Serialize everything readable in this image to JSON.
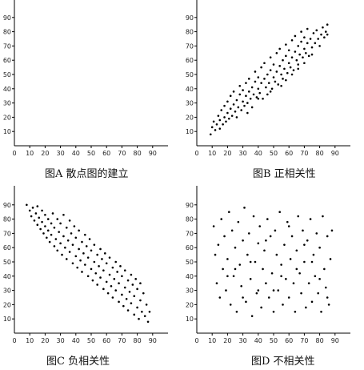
{
  "chart_data": [
    {
      "type": "scatter",
      "caption": "图A 散点图的建立",
      "xticks": [
        "10",
        "20",
        "30",
        "40",
        "50",
        "60",
        "70",
        "80",
        "90"
      ],
      "yticks": [
        "10",
        "20",
        "30",
        "40",
        "50",
        "60",
        "70",
        "80",
        "90"
      ],
      "xlim": [
        0,
        100
      ],
      "ylim": [
        0,
        100
      ],
      "points": []
    },
    {
      "type": "scatter",
      "caption": "图B 正相关性",
      "xticks": [
        "10",
        "20",
        "30",
        "40",
        "50",
        "60",
        "70",
        "80",
        "90"
      ],
      "yticks": [
        "10",
        "20",
        "30",
        "40",
        "50",
        "60",
        "70",
        "80",
        "90"
      ],
      "xlim": [
        0,
        100
      ],
      "ylim": [
        0,
        100
      ],
      "points": [
        [
          9,
          8
        ],
        [
          10,
          13
        ],
        [
          11,
          17
        ],
        [
          12,
          11
        ],
        [
          13,
          15
        ],
        [
          14,
          21
        ],
        [
          15,
          12
        ],
        [
          15,
          18
        ],
        [
          16,
          25
        ],
        [
          17,
          15
        ],
        [
          18,
          20
        ],
        [
          18,
          28
        ],
        [
          19,
          17
        ],
        [
          20,
          23
        ],
        [
          20,
          31
        ],
        [
          21,
          19
        ],
        [
          22,
          26
        ],
        [
          22,
          35
        ],
        [
          23,
          21
        ],
        [
          24,
          29
        ],
        [
          24,
          38
        ],
        [
          25,
          24
        ],
        [
          26,
          32
        ],
        [
          26,
          20
        ],
        [
          27,
          27
        ],
        [
          28,
          36
        ],
        [
          28,
          42
        ],
        [
          29,
          25
        ],
        [
          30,
          31
        ],
        [
          30,
          39
        ],
        [
          31,
          28
        ],
        [
          32,
          35
        ],
        [
          32,
          44
        ],
        [
          33,
          30
        ],
        [
          34,
          38
        ],
        [
          34,
          47
        ],
        [
          35,
          33
        ],
        [
          36,
          41
        ],
        [
          36,
          27
        ],
        [
          37,
          36
        ],
        [
          38,
          45
        ],
        [
          38,
          52
        ],
        [
          39,
          34
        ],
        [
          40,
          40
        ],
        [
          40,
          48
        ],
        [
          41,
          37
        ],
        [
          42,
          44
        ],
        [
          42,
          55
        ],
        [
          43,
          33
        ],
        [
          44,
          47
        ],
        [
          44,
          58
        ],
        [
          45,
          41
        ],
        [
          46,
          50
        ],
        [
          46,
          36
        ],
        [
          47,
          44
        ],
        [
          48,
          53
        ],
        [
          48,
          62
        ],
        [
          49,
          40
        ],
        [
          50,
          48
        ],
        [
          50,
          57
        ],
        [
          51,
          45
        ],
        [
          52,
          52
        ],
        [
          52,
          65
        ],
        [
          53,
          43
        ],
        [
          54,
          56
        ],
        [
          54,
          68
        ],
        [
          55,
          50
        ],
        [
          56,
          60
        ],
        [
          56,
          47
        ],
        [
          57,
          54
        ],
        [
          58,
          63
        ],
        [
          58,
          71
        ],
        [
          59,
          51
        ],
        [
          60,
          58
        ],
        [
          60,
          67
        ],
        [
          61,
          55
        ],
        [
          62,
          62
        ],
        [
          62,
          74
        ],
        [
          63,
          53
        ],
        [
          64,
          66
        ],
        [
          64,
          77
        ],
        [
          65,
          60
        ],
        [
          66,
          70
        ],
        [
          66,
          57
        ],
        [
          67,
          64
        ],
        [
          68,
          73
        ],
        [
          68,
          80
        ],
        [
          69,
          62
        ],
        [
          70,
          68
        ],
        [
          70,
          76
        ],
        [
          71,
          65
        ],
        [
          72,
          72
        ],
        [
          72,
          82
        ],
        [
          73,
          63
        ],
        [
          74,
          75
        ],
        [
          75,
          69
        ],
        [
          76,
          79
        ],
        [
          77,
          72
        ],
        [
          78,
          81
        ],
        [
          79,
          75
        ],
        [
          80,
          70
        ],
        [
          81,
          78
        ],
        [
          82,
          83
        ],
        [
          83,
          76
        ],
        [
          84,
          80
        ],
        [
          85,
          85
        ],
        [
          48,
          38
        ],
        [
          55,
          42
        ],
        [
          62,
          50
        ],
        [
          70,
          58
        ],
        [
          40,
          33
        ],
        [
          33,
          23
        ],
        [
          58,
          46
        ],
        [
          66,
          54
        ],
        [
          75,
          64
        ],
        [
          85,
          78
        ]
      ]
    },
    {
      "type": "scatter",
      "caption": "图C 负相关性",
      "xticks": [
        "10",
        "20",
        "30",
        "40",
        "50",
        "60",
        "70",
        "80",
        "90"
      ],
      "yticks": [
        "10",
        "20",
        "30",
        "40",
        "50",
        "60",
        "70",
        "80",
        "90"
      ],
      "xlim": [
        0,
        100
      ],
      "ylim": [
        0,
        100
      ],
      "points": [
        [
          8,
          90
        ],
        [
          10,
          86
        ],
        [
          11,
          82
        ],
        [
          12,
          88
        ],
        [
          13,
          79
        ],
        [
          14,
          84
        ],
        [
          15,
          76
        ],
        [
          15,
          89
        ],
        [
          16,
          81
        ],
        [
          17,
          73
        ],
        [
          18,
          86
        ],
        [
          18,
          78
        ],
        [
          19,
          70
        ],
        [
          20,
          83
        ],
        [
          20,
          75
        ],
        [
          21,
          67
        ],
        [
          22,
          80
        ],
        [
          22,
          72
        ],
        [
          23,
          64
        ],
        [
          24,
          77
        ],
        [
          24,
          69
        ],
        [
          25,
          84
        ],
        [
          26,
          61
        ],
        [
          26,
          74
        ],
        [
          27,
          66
        ],
        [
          28,
          80
        ],
        [
          28,
          58
        ],
        [
          29,
          71
        ],
        [
          30,
          63
        ],
        [
          30,
          77
        ],
        [
          31,
          55
        ],
        [
          32,
          68
        ],
        [
          32,
          83
        ],
        [
          33,
          60
        ],
        [
          34,
          74
        ],
        [
          34,
          52
        ],
        [
          35,
          65
        ],
        [
          36,
          79
        ],
        [
          36,
          57
        ],
        [
          37,
          70
        ],
        [
          38,
          49
        ],
        [
          38,
          62
        ],
        [
          39,
          75
        ],
        [
          40,
          54
        ],
        [
          40,
          67
        ],
        [
          41,
          46
        ],
        [
          42,
          59
        ],
        [
          42,
          72
        ],
        [
          43,
          51
        ],
        [
          44,
          64
        ],
        [
          44,
          43
        ],
        [
          45,
          56
        ],
        [
          46,
          69
        ],
        [
          46,
          48
        ],
        [
          47,
          61
        ],
        [
          48,
          40
        ],
        [
          48,
          53
        ],
        [
          49,
          66
        ],
        [
          50,
          45
        ],
        [
          50,
          58
        ],
        [
          51,
          37
        ],
        [
          52,
          50
        ],
        [
          52,
          62
        ],
        [
          53,
          42
        ],
        [
          54,
          55
        ],
        [
          54,
          34
        ],
        [
          55,
          47
        ],
        [
          56,
          59
        ],
        [
          56,
          39
        ],
        [
          57,
          52
        ],
        [
          58,
          31
        ],
        [
          58,
          44
        ],
        [
          59,
          56
        ],
        [
          60,
          36
        ],
        [
          60,
          49
        ],
        [
          61,
          28
        ],
        [
          62,
          41
        ],
        [
          62,
          53
        ],
        [
          63,
          33
        ],
        [
          64,
          46
        ],
        [
          64,
          25
        ],
        [
          65,
          38
        ],
        [
          66,
          50
        ],
        [
          66,
          30
        ],
        [
          67,
          43
        ],
        [
          68,
          22
        ],
        [
          68,
          35
        ],
        [
          69,
          47
        ],
        [
          70,
          27
        ],
        [
          70,
          40
        ],
        [
          71,
          19
        ],
        [
          72,
          32
        ],
        [
          72,
          44
        ],
        [
          73,
          24
        ],
        [
          74,
          37
        ],
        [
          74,
          16
        ],
        [
          75,
          29
        ],
        [
          76,
          41
        ],
        [
          76,
          21
        ],
        [
          77,
          34
        ],
        [
          78,
          13
        ],
        [
          78,
          26
        ],
        [
          79,
          38
        ],
        [
          80,
          18
        ],
        [
          80,
          31
        ],
        [
          81,
          10
        ],
        [
          82,
          23
        ],
        [
          82,
          35
        ],
        [
          83,
          15
        ],
        [
          84,
          28
        ],
        [
          85,
          12
        ],
        [
          86,
          20
        ],
        [
          87,
          8
        ],
        [
          88,
          15
        ]
      ]
    },
    {
      "type": "scatter",
      "caption": "图D 不相关性",
      "xticks": [
        "10",
        "20",
        "30",
        "40",
        "50",
        "60",
        "70",
        "80",
        "90"
      ],
      "yticks": [
        "10",
        "20",
        "30",
        "40",
        "50",
        "60",
        "70",
        "80",
        "90"
      ],
      "xlim": [
        0,
        100
      ],
      "ylim": [
        0,
        100
      ],
      "points": [
        [
          11,
          75
        ],
        [
          12,
          55
        ],
        [
          13,
          35
        ],
        [
          14,
          62
        ],
        [
          15,
          25
        ],
        [
          16,
          80
        ],
        [
          17,
          45
        ],
        [
          18,
          68
        ],
        [
          19,
          30
        ],
        [
          20,
          52
        ],
        [
          21,
          85
        ],
        [
          22,
          20
        ],
        [
          23,
          72
        ],
        [
          24,
          40
        ],
        [
          25,
          60
        ],
        [
          26,
          15
        ],
        [
          27,
          78
        ],
        [
          28,
          48
        ],
        [
          29,
          33
        ],
        [
          30,
          65
        ],
        [
          31,
          88
        ],
        [
          32,
          22
        ],
        [
          33,
          55
        ],
        [
          34,
          70
        ],
        [
          35,
          38
        ],
        [
          36,
          12
        ],
        [
          37,
          82
        ],
        [
          38,
          50
        ],
        [
          39,
          28
        ],
        [
          40,
          63
        ],
        [
          41,
          75
        ],
        [
          42,
          18
        ],
        [
          43,
          45
        ],
        [
          44,
          58
        ],
        [
          45,
          35
        ],
        [
          46,
          80
        ],
        [
          47,
          25
        ],
        [
          48,
          68
        ],
        [
          49,
          42
        ],
        [
          50,
          15
        ],
        [
          51,
          72
        ],
        [
          52,
          55
        ],
        [
          53,
          30
        ],
        [
          54,
          85
        ],
        [
          55,
          48
        ],
        [
          56,
          20
        ],
        [
          57,
          62
        ],
        [
          58,
          38
        ],
        [
          59,
          78
        ],
        [
          60,
          25
        ],
        [
          61,
          52
        ],
        [
          62,
          68
        ],
        [
          63,
          35
        ],
        [
          64,
          15
        ],
        [
          65,
          58
        ],
        [
          66,
          82
        ],
        [
          67,
          42
        ],
        [
          68,
          28
        ],
        [
          69,
          72
        ],
        [
          70,
          50
        ],
        [
          71,
          18
        ],
        [
          72,
          65
        ],
        [
          73,
          35
        ],
        [
          74,
          80
        ],
        [
          75,
          22
        ],
        [
          76,
          55
        ],
        [
          77,
          40
        ],
        [
          78,
          70
        ],
        [
          79,
          28
        ],
        [
          80,
          60
        ],
        [
          81,
          15
        ],
        [
          82,
          82
        ],
        [
          83,
          45
        ],
        [
          84,
          32
        ],
        [
          85,
          68
        ],
        [
          86,
          20
        ],
        [
          87,
          52
        ],
        [
          88,
          72
        ],
        [
          25,
          45
        ],
        [
          40,
          30
        ],
        [
          55,
          40
        ],
        [
          70,
          62
        ],
        [
          30,
          25
        ],
        [
          60,
          75
        ],
        [
          45,
          65
        ],
        [
          35,
          50
        ],
        [
          65,
          45
        ],
        [
          50,
          30
        ],
        [
          75,
          50
        ],
        [
          20,
          40
        ],
        [
          80,
          38
        ],
        [
          85,
          25
        ]
      ]
    }
  ]
}
